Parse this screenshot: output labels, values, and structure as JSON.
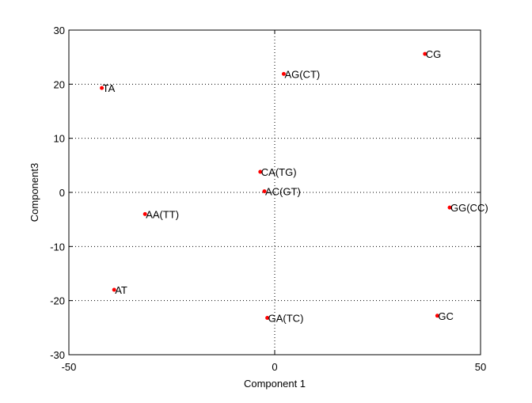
{
  "chart_data": {
    "type": "scatter",
    "title": "",
    "xlabel": "Component 1",
    "ylabel": "Component3",
    "xlim": [
      -50,
      50
    ],
    "ylim": [
      -30,
      30
    ],
    "xticks": [
      -50,
      0,
      50
    ],
    "yticks": [
      -30,
      -20,
      -10,
      0,
      10,
      20,
      30
    ],
    "grid": true,
    "grid_style": "dotted",
    "marker_color": "#ff0000",
    "points": [
      {
        "label": "TA",
        "x": -42,
        "y": 19.3
      },
      {
        "label": "AG(CT)",
        "x": 2.2,
        "y": 21.9
      },
      {
        "label": "CG",
        "x": 36.5,
        "y": 25.6
      },
      {
        "label": "CA(TG)",
        "x": -3.5,
        "y": 3.8
      },
      {
        "label": "AC(GT)",
        "x": -2.5,
        "y": 0.2
      },
      {
        "label": "AA(TT)",
        "x": -31.5,
        "y": -4
      },
      {
        "label": "GG(CC)",
        "x": 42.5,
        "y": -2.8
      },
      {
        "label": "AT",
        "x": -39,
        "y": -18
      },
      {
        "label": "GA(TC)",
        "x": -1.8,
        "y": -23.2
      },
      {
        "label": "GC",
        "x": 39.5,
        "y": -22.8
      }
    ]
  }
}
